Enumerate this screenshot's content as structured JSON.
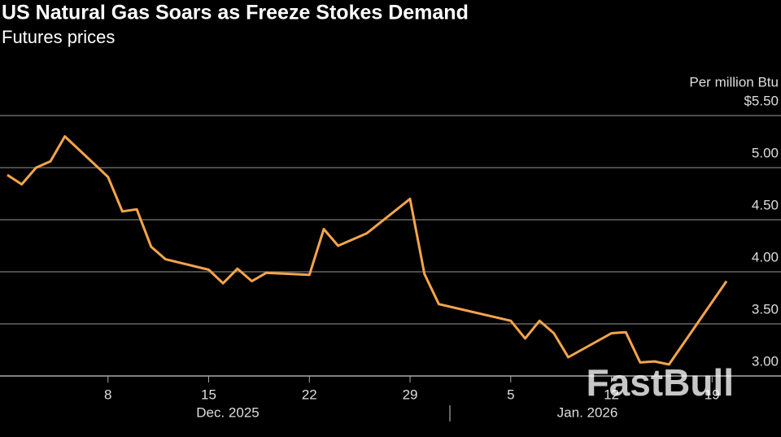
{
  "chart_data": {
    "type": "line",
    "title": "US Natural Gas Soars as Freeze Stokes Demand",
    "subtitle": "Futures prices",
    "y_axis_label": "Per million Btu",
    "watermark": "FastBull",
    "x": [
      "2025-12-01",
      "2025-12-02",
      "2025-12-03",
      "2025-12-04",
      "2025-12-05",
      "2025-12-08",
      "2025-12-09",
      "2025-12-10",
      "2025-12-11",
      "2025-12-12",
      "2025-12-15",
      "2025-12-16",
      "2025-12-17",
      "2025-12-18",
      "2025-12-19",
      "2025-12-22",
      "2025-12-23",
      "2025-12-24",
      "2025-12-26",
      "2025-12-29",
      "2025-12-30",
      "2025-12-31",
      "2026-01-05",
      "2026-01-06",
      "2026-01-07",
      "2026-01-08",
      "2026-01-09",
      "2026-01-12",
      "2026-01-13",
      "2026-01-14",
      "2026-01-15",
      "2026-01-16",
      "2026-01-20"
    ],
    "series": [
      {
        "name": "Natural gas futures",
        "color": "#f5a54a",
        "values": [
          4.93,
          4.84,
          5.0,
          5.06,
          5.3,
          4.91,
          4.58,
          4.6,
          4.24,
          4.12,
          4.02,
          3.89,
          4.03,
          3.91,
          3.99,
          3.97,
          4.41,
          4.25,
          4.37,
          4.7,
          3.98,
          3.69,
          3.53,
          3.36,
          3.53,
          3.41,
          3.18,
          3.41,
          3.42,
          3.13,
          3.14,
          3.11,
          3.91
        ]
      }
    ],
    "xlim": [
      "2025-12-01",
      "2026-01-20"
    ],
    "xticks": [
      {
        "value": "2025-12-08",
        "label": "8"
      },
      {
        "value": "2025-12-15",
        "label": "15"
      },
      {
        "value": "2025-12-22",
        "label": "22"
      },
      {
        "value": "2025-12-29",
        "label": "29"
      },
      {
        "value": "2026-01-05",
        "label": "5"
      },
      {
        "value": "2026-01-12",
        "label": "12"
      },
      {
        "value": "2026-01-19",
        "label": "19"
      }
    ],
    "month_labels": [
      "Dec. 2025",
      "Jan. 2026"
    ],
    "ylim": [
      3.0,
      5.5
    ],
    "yticks": [
      {
        "value": 5.5,
        "label": "$5.50"
      },
      {
        "value": 5.0,
        "label": "5.00"
      },
      {
        "value": 4.5,
        "label": "4.50"
      },
      {
        "value": 4.0,
        "label": "4.00"
      },
      {
        "value": 3.5,
        "label": "3.50"
      },
      {
        "value": 3.0,
        "label": "3.00"
      }
    ],
    "grid": true
  }
}
